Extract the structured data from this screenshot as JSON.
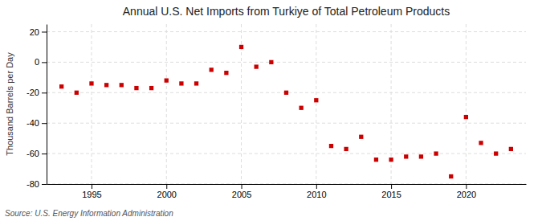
{
  "chart_data": {
    "type": "scatter",
    "title": "Annual U.S. Net Imports from Turkiye of Total Petroleum Products",
    "ylabel": "Thousand Barrels per Day",
    "annotations": [
      "Source: U.S. Energy Information Administration"
    ],
    "x": [
      1993,
      1994,
      1995,
      1996,
      1997,
      1998,
      1999,
      2000,
      2001,
      2002,
      2003,
      2004,
      2005,
      2006,
      2007,
      2008,
      2009,
      2010,
      2011,
      2012,
      2013,
      2014,
      2015,
      2016,
      2017,
      2018,
      2019,
      2020,
      2021,
      2022,
      2023
    ],
    "values": [
      -16,
      -20,
      -14,
      -15,
      -15,
      -17,
      -17,
      -12,
      -14,
      -14,
      -5,
      -7,
      10,
      -3,
      0,
      -20,
      -30,
      -25,
      -55,
      -57,
      -49,
      -64,
      -64,
      -62,
      -62,
      -60,
      -75,
      -36,
      -53,
      -60,
      -57
    ],
    "color": "#cc0000",
    "marker": "square",
    "xlim": [
      1992,
      2024
    ],
    "xticks": [
      1995,
      2000,
      2005,
      2010,
      2015,
      2020
    ],
    "ylim": [
      -80,
      25
    ],
    "yticks": [
      -80,
      -60,
      -40,
      -20,
      0,
      20
    ],
    "grid": true
  }
}
